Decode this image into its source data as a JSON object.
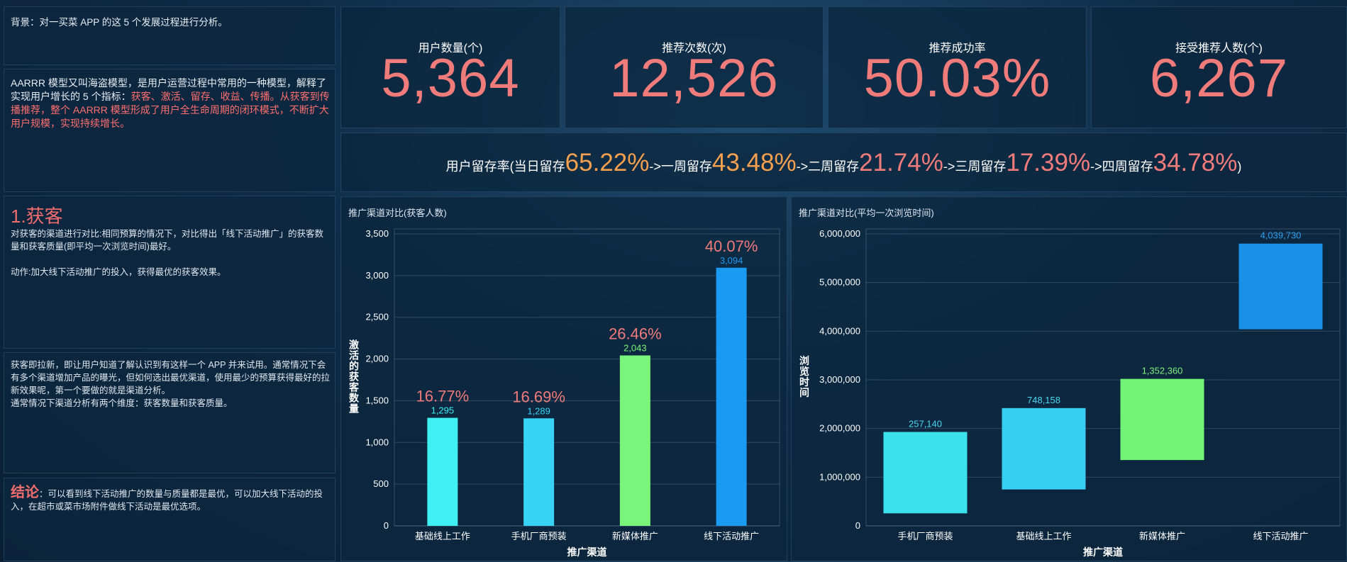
{
  "left": {
    "background": "背景：对一买菜 APP 的这 5 个发展过程进行分析。",
    "intro_white": "AARRR 模型又叫海盗模型，是用户运营过程中常用的一种模型，解释了实现用户增长的 5 个指标：",
    "intro_red": "获客、激活、留存、收益、传播。从获客到传播推荐，整个 AARRR 模型形成了用户全生命周期的闭环模式，不断扩大用户规模，实现持续增长。",
    "section_title": "1.获客",
    "section_text": "对获客的渠道进行对比:相同预算的情况下，对比得出「线下活动推广」的获客数量和获客质量(即平均一次浏览时间)最好。",
    "action_text": "动作:加大线下活动推广的投入，获得最优的获客效果。",
    "explain_text": "获客即拉新，即让用户知道了解认识到有这样一个 APP 并来试用。通常情况下会有多个渠道增加产品的曝光，但如何选出最优渠道，使用最少的预算获得最好的拉新效果呢，第一个要做的就是渠道分析。",
    "explain_text2": "通常情况下渠道分析有两个维度：获客数量和获客质量。",
    "conclusion_label": "结论",
    "conclusion_text": "：可以看到线下活动推广的数量与质量都是最优，可以加大线下活动的投入，在超市或菜市场附件做线下活动是最优选项。"
  },
  "kpis": [
    {
      "label": "用户数量(个)",
      "value": "5,364"
    },
    {
      "label": "推荐次数(次)",
      "value": "12,526"
    },
    {
      "label": "推荐成功率",
      "value": "50.03%"
    },
    {
      "label": "接受推荐人数(个)",
      "value": "6,267"
    }
  ],
  "retention": {
    "prefix": "用户留存率(当日留存",
    "day0": "65.22%",
    "sep1": "->一周留存",
    "week1": "43.48%",
    "sep2": "->二周留存",
    "week2": "21.74%",
    "sep3": "->三周留存",
    "week3": "17.39%",
    "sep4": "->四周留存",
    "week4": "34.78%",
    "suffix": ")"
  },
  "chart_data": [
    {
      "type": "bar",
      "title": "推广渠道对比(获客人数)",
      "xlabel": "推广渠道",
      "ylabel": "激活的获客数量",
      "categories": [
        "基础线上工作",
        "手机厂商预装",
        "新媒体推广",
        "线下活动推广"
      ],
      "values": [
        1295,
        1289,
        2043,
        3094
      ],
      "value_labels": [
        "1,295",
        "1,289",
        "2,043",
        "3,094"
      ],
      "percent_labels": [
        "16.77%",
        "16.69%",
        "26.46%",
        "40.07%"
      ],
      "ylim": [
        0,
        3500
      ],
      "yticks": [
        0,
        500,
        1000,
        1500,
        2000,
        2500,
        3000,
        3500
      ],
      "ytick_labels": [
        "0",
        "500",
        "1,000",
        "1,500",
        "2,000",
        "2,500",
        "3,000",
        "3,500"
      ],
      "colors": [
        "#3ef0f4",
        "#38d2f4",
        "#78f57a",
        "#1a9af0"
      ]
    },
    {
      "type": "bar",
      "title": "推广渠道对比(平均一次浏览时间)",
      "xlabel": "推广渠道",
      "ylabel": "浏览时间",
      "categories": [
        "手机厂商预装",
        "基础线上工作",
        "新媒体推广",
        "线下活动推广"
      ],
      "ranges": [
        [
          257140,
          1930000
        ],
        [
          748158,
          2420000
        ],
        [
          1352360,
          3020000
        ],
        [
          4039730,
          5800000
        ]
      ],
      "value_labels": [
        "257,140",
        "748,158",
        "1,352,360",
        "4,039,730"
      ],
      "ylim": [
        0,
        6000000
      ],
      "yticks": [
        0,
        1000000,
        2000000,
        3000000,
        4000000,
        5000000,
        6000000
      ],
      "ytick_labels": [
        "0",
        "1,000,000",
        "2,000,000",
        "3,000,000",
        "4,000,000",
        "5,000,000",
        "6,000,000"
      ],
      "colors": [
        "#3ae2ee",
        "#38cdf2",
        "#74f477",
        "#1a90e8"
      ],
      "label_colors": [
        "#48d8f0",
        "#48d8f0",
        "#7cf07c",
        "#2f9ff0"
      ]
    }
  ],
  "colors": {
    "accent_red": "#f07b7b",
    "accent_orange": "#f5a04e",
    "panel_bg": "#0c263e"
  }
}
